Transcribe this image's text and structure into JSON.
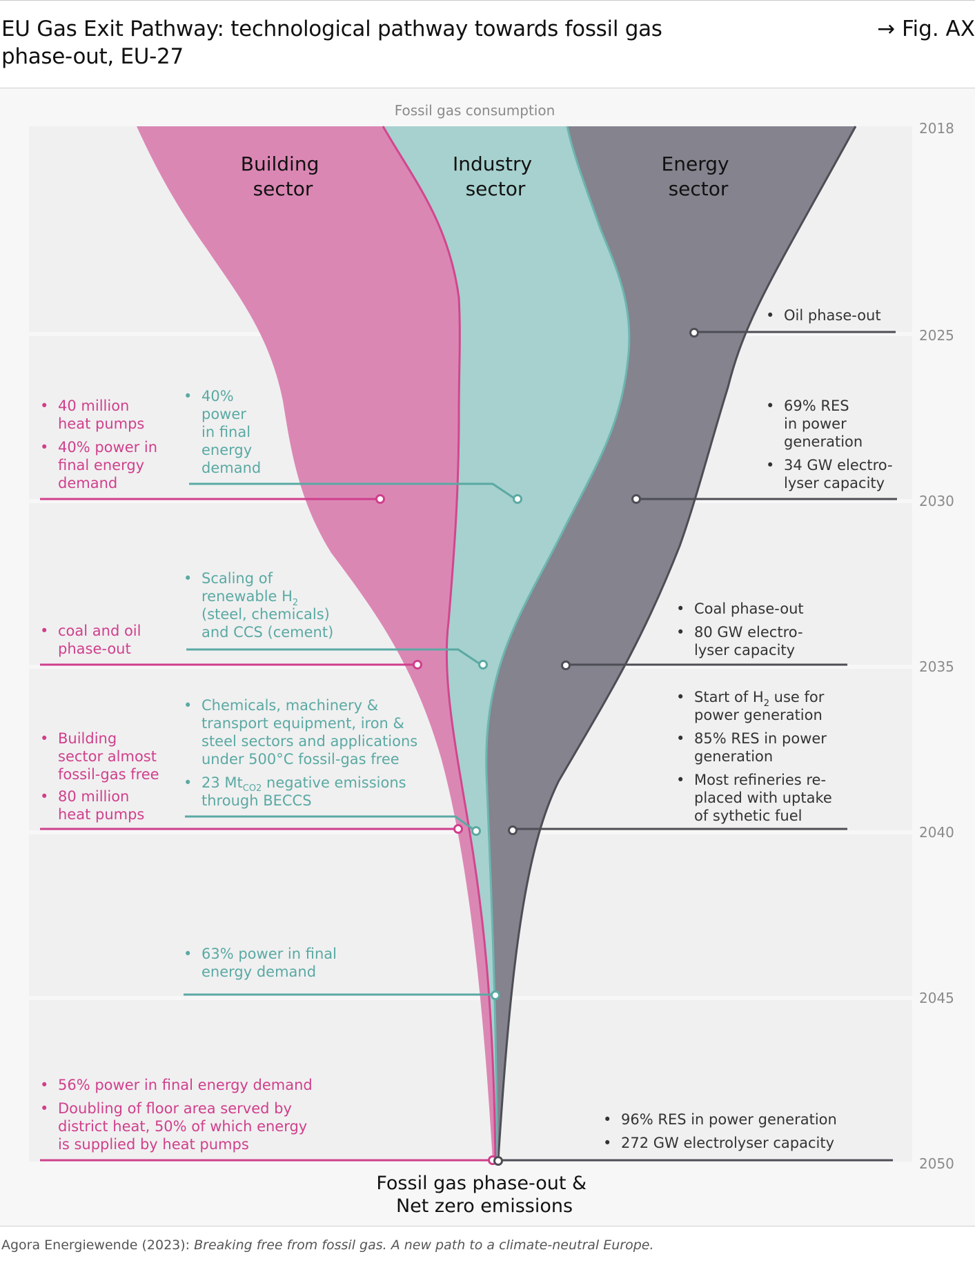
{
  "header": {
    "title_line1": "EU Gas Exit Pathway: technological pathway towards fossil gas",
    "title_line2": "phase-out, EU-27",
    "fig_ref": "→ Fig. AX"
  },
  "diagram": {
    "top_label": "Fossil gas consumption",
    "bottom_label_line1": "Fossil gas phase-out &",
    "bottom_label_line2": "Net zero emissions",
    "years": [
      "2018",
      "2025",
      "2030",
      "2035",
      "2040",
      "2045",
      "2050"
    ],
    "sectors": [
      {
        "line1": "Building",
        "line2": "sector",
        "color": "#db87b4",
        "edge": "#d2468e"
      },
      {
        "line1": "Industry",
        "line2": "sector",
        "color": "#a6d1ce",
        "edge": "#6db5b0"
      },
      {
        "line1": "Energy",
        "line2": "sector",
        "color": "#84838e",
        "edge": "#4d4d55"
      }
    ],
    "colors": {
      "building_text": "#d03f8c",
      "industry_text": "#5aa9a3",
      "energy_text": "#333333",
      "year_text": "#8a8a8a"
    },
    "building_notes": {
      "y2030": [
        "40 million heat pumps",
        "40% power in final energy demand"
      ],
      "y2035": [
        "coal and oil phase-out"
      ],
      "y2040": [
        "Building sector almost fossil-gas free",
        "80 million heat pumps"
      ],
      "y2050": [
        "56% power in final energy demand",
        "Doubling of floor area served by district heat, 50% of which energy is supplied by heat pumps"
      ]
    },
    "industry_notes": {
      "y2030": [
        "40% power in final energy demand"
      ],
      "y2035": [
        "Scaling of renewable H2 (steel, chemicals) and CCS (cement)"
      ],
      "y2040": [
        "Chemicals, machinery & transport equipment, iron & steel sectors and applications under 500°C fossil-gas free",
        "23 MtCO2 negative emissions through BECCS"
      ],
      "y2045": [
        "63% power in final energy demand"
      ]
    },
    "energy_notes": {
      "y2025": [
        "Oil phase-out"
      ],
      "y2030": [
        "69% RES in power generation",
        "34 GW electrolyser capacity"
      ],
      "y2035": [
        "Coal phase-out",
        "80 GW electrolyser capacity"
      ],
      "y2040": [
        "Start of H2 use for power generation",
        "85% RES in power generation",
        "Most refineries replaced with uptake of sythetic fuel"
      ],
      "y2050": [
        "96% RES in power generation",
        "272 GW electrolyser capacity"
      ]
    }
  },
  "footer": {
    "source_prefix": "Agora Energiewende (2023): ",
    "source_title": "Breaking free from fossil gas. A new path to a climate-neutral Europe."
  }
}
